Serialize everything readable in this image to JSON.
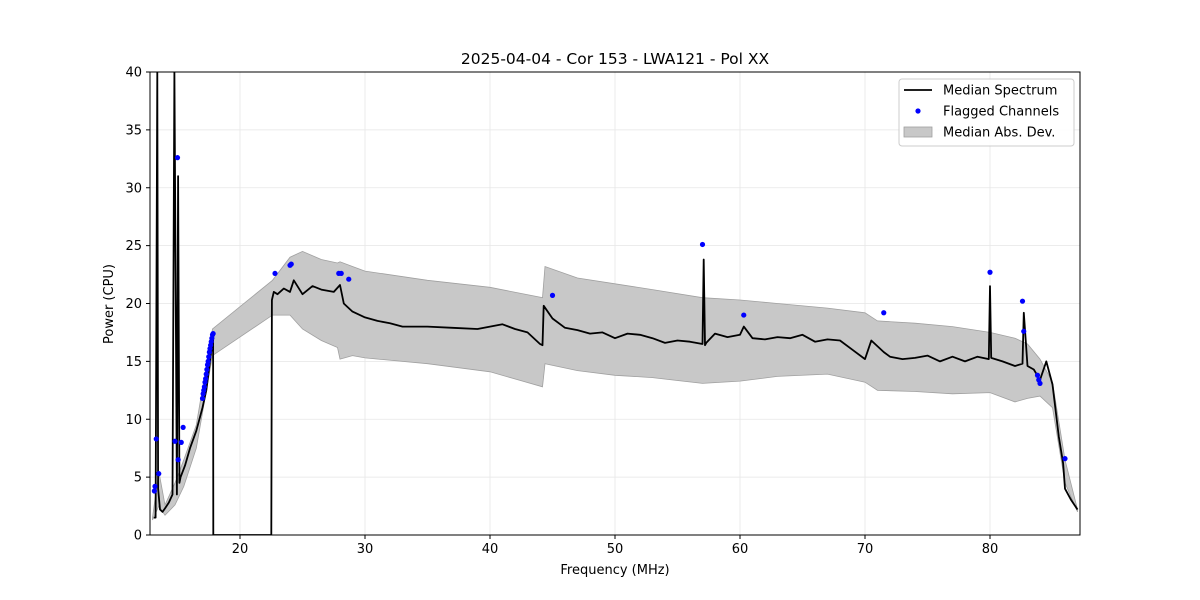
{
  "chart_data": {
    "type": "line",
    "title": "2025-04-04 - Cor 153 - LWA121 - Pol XX",
    "xlabel": "Frequency (MHz)",
    "ylabel": "Power (CPU)",
    "xlim": [
      12.8,
      87.2
    ],
    "ylim": [
      0,
      40
    ],
    "xticks": [
      20,
      30,
      40,
      50,
      60,
      70,
      80
    ],
    "yticks": [
      0,
      5,
      10,
      15,
      20,
      25,
      30,
      35,
      40
    ],
    "grid": true,
    "legend_position": "top-right",
    "colors": {
      "median": "#000000",
      "flagged": "#0000ff",
      "band": "#c8c8c8",
      "band_edge": "#a0a0a0"
    },
    "legend": [
      {
        "label": "Median Spectrum",
        "kind": "line"
      },
      {
        "label": "Flagged Channels",
        "kind": "marker"
      },
      {
        "label": "Median Abs. Dev.",
        "kind": "patch"
      }
    ],
    "series": [
      {
        "name": "Median Spectrum",
        "x": [
          13.1,
          13.25,
          13.38,
          13.45,
          13.6,
          13.8,
          14.0,
          14.3,
          14.6,
          14.75,
          14.95,
          15.05,
          15.15,
          15.25,
          15.6,
          16.0,
          16.5,
          17.0,
          17.3,
          17.6,
          17.85,
          17.86,
          18.5,
          20.0,
          22.5,
          22.55,
          22.7,
          23.0,
          23.5,
          24.0,
          24.3,
          25.0,
          25.8,
          26.5,
          27.5,
          28.0,
          28.3,
          28.6,
          29.0,
          30.0,
          31.0,
          32.0,
          33.0,
          35.0,
          37.0,
          39.0,
          40.0,
          41.0,
          42.0,
          43.0,
          44.0,
          44.2,
          44.3,
          45.0,
          46.0,
          47.0,
          48.0,
          49.0,
          50.0,
          51.0,
          52.0,
          53.0,
          54.0,
          55.0,
          56.0,
          57.0,
          57.1,
          57.2,
          57.3,
          58.0,
          59.0,
          60.0,
          60.3,
          61.0,
          62.0,
          63.0,
          64.0,
          65.0,
          66.0,
          67.0,
          68.0,
          69.0,
          70.0,
          70.5,
          71.5,
          72.0,
          73.0,
          74.0,
          75.0,
          76.0,
          77.0,
          78.0,
          79.0,
          79.9,
          80.0,
          80.1,
          81.0,
          82.0,
          82.6,
          82.7,
          83.0,
          83.5,
          84.0,
          84.5,
          85.0,
          85.5,
          85.85,
          86.0,
          86.5,
          87.0
        ],
        "values": [
          1.5,
          1.5,
          40,
          4.0,
          2.2,
          2.0,
          2.3,
          2.8,
          3.5,
          40,
          3.5,
          31,
          4.5,
          5.0,
          6.0,
          7.5,
          9.0,
          11.0,
          12.5,
          15.0,
          17.2,
          0,
          0,
          0,
          0,
          20.3,
          21.0,
          20.8,
          21.3,
          21.0,
          22.0,
          20.8,
          21.5,
          21.2,
          21.0,
          21.6,
          20.0,
          19.7,
          19.3,
          18.8,
          18.5,
          18.3,
          18.0,
          18.0,
          17.9,
          17.8,
          18.0,
          18.2,
          17.8,
          17.5,
          16.5,
          16.4,
          19.8,
          18.7,
          17.9,
          17.7,
          17.4,
          17.5,
          17.0,
          17.4,
          17.3,
          17.0,
          16.6,
          16.8,
          16.7,
          16.5,
          23.8,
          16.4,
          16.6,
          17.4,
          17.1,
          17.3,
          18.0,
          17.0,
          16.9,
          17.1,
          17.0,
          17.3,
          16.7,
          16.9,
          16.8,
          16.0,
          15.2,
          16.8,
          15.8,
          15.4,
          15.2,
          15.3,
          15.5,
          15.0,
          15.4,
          15.0,
          15.4,
          15.2,
          21.5,
          15.3,
          15.0,
          14.6,
          14.8,
          19.2,
          14.6,
          14.3,
          13.4,
          15.0,
          13.0,
          8.5,
          6.2,
          4.0,
          3.0,
          2.2
        ]
      },
      {
        "name": "Median Abs. Dev.",
        "x": [
          13.0,
          13.5,
          14.0,
          14.8,
          15.5,
          16.5,
          17.8,
          22.6,
          24.0,
          25.0,
          26.5,
          27.8,
          28.0,
          29.0,
          30.0,
          35.0,
          40.0,
          44.2,
          44.4,
          47.0,
          50.0,
          53.0,
          57.0,
          60.0,
          63.0,
          67.0,
          70.0,
          71.0,
          74.0,
          77.0,
          80.0,
          82.0,
          83.0,
          84.0,
          85.0,
          86.0,
          87.0
        ],
        "upper": [
          1.5,
          5.5,
          2.6,
          4.5,
          6.5,
          9.5,
          17.8,
          22.0,
          24.0,
          24.5,
          23.8,
          23.5,
          23.6,
          23.2,
          22.8,
          22.0,
          21.4,
          20.5,
          23.2,
          22.2,
          21.7,
          21.2,
          20.5,
          20.3,
          20.0,
          19.6,
          19.2,
          18.5,
          18.3,
          18.0,
          17.5,
          17.0,
          16.5,
          15.2,
          13.2,
          6.5,
          2.2
        ],
        "lower": [
          1.3,
          2.5,
          1.7,
          2.6,
          4.2,
          7.5,
          15.5,
          19.0,
          19.0,
          17.8,
          16.8,
          16.2,
          15.2,
          15.5,
          15.3,
          14.8,
          14.1,
          12.8,
          14.8,
          14.2,
          13.8,
          13.6,
          13.1,
          13.3,
          13.7,
          13.9,
          13.2,
          12.5,
          12.4,
          12.2,
          12.3,
          11.5,
          11.8,
          12.0,
          11.0,
          4.5,
          2.0
        ]
      },
      {
        "name": "Flagged Channels",
        "type": "scatter",
        "x": [
          13.15,
          13.2,
          13.3,
          13.5,
          14.8,
          15.0,
          15.05,
          15.3,
          15.45,
          17.0,
          17.05,
          17.1,
          17.15,
          17.2,
          17.25,
          17.3,
          17.35,
          17.4,
          17.45,
          17.5,
          17.55,
          17.6,
          17.65,
          17.7,
          17.75,
          17.8,
          17.85,
          22.8,
          24.0,
          24.1,
          27.9,
          28.1,
          28.7,
          45.0,
          57.0,
          60.3,
          71.5,
          80.0,
          82.6,
          82.7,
          83.8,
          83.9,
          84.0,
          86.0
        ],
        "values": [
          3.8,
          4.2,
          8.3,
          5.3,
          8.1,
          32.6,
          6.5,
          8.0,
          9.3,
          11.8,
          12.2,
          12.5,
          12.8,
          13.2,
          13.5,
          13.9,
          14.3,
          14.7,
          15.0,
          15.4,
          15.8,
          16.1,
          16.4,
          16.7,
          17.0,
          17.3,
          17.4,
          22.6,
          23.3,
          23.4,
          22.6,
          22.6,
          22.1,
          20.7,
          25.1,
          19.0,
          19.2,
          22.7,
          20.2,
          17.6,
          13.8,
          13.4,
          13.1,
          6.6
        ]
      }
    ]
  }
}
